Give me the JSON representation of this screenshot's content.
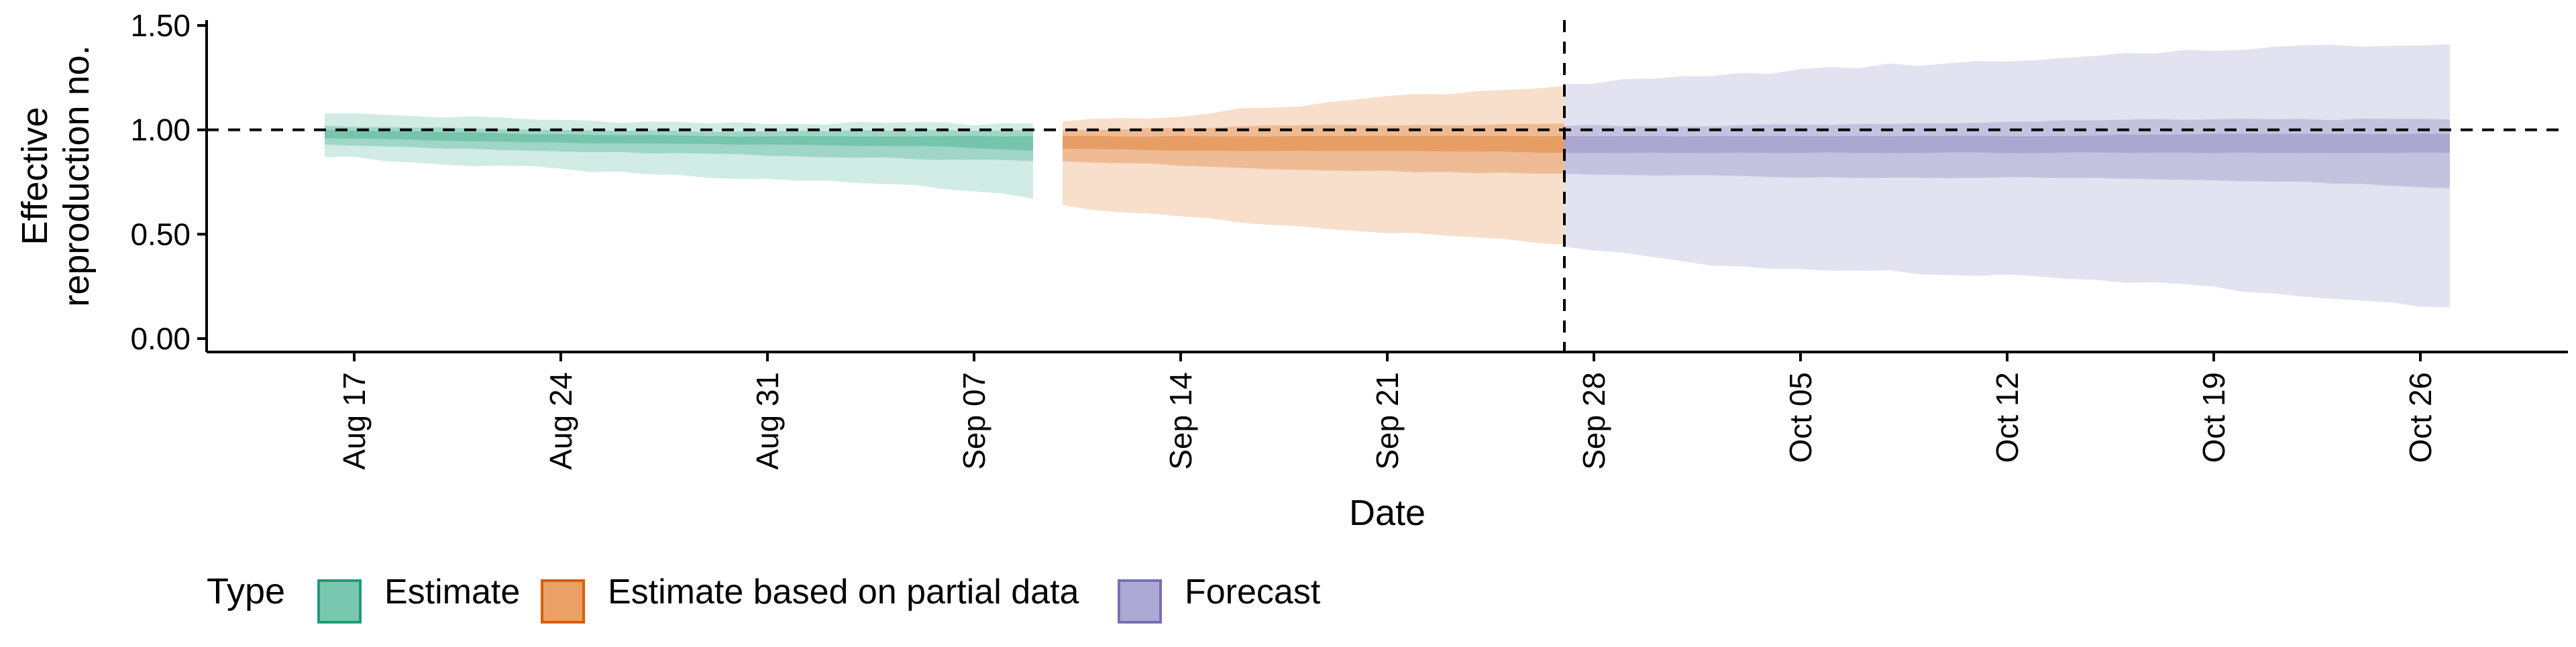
{
  "chart_data": {
    "type": "area",
    "title": "",
    "xlabel": "Date",
    "ylabel_lines": [
      "Effective",
      "reproduction no."
    ],
    "ylim": [
      0,
      1.5
    ],
    "yticks": [
      0.0,
      0.5,
      1.0,
      1.5
    ],
    "ytick_labels": [
      "0.00",
      "0.50",
      "1.00",
      "1.50"
    ],
    "xlim": [
      "2020-08-12",
      "2020-10-31"
    ],
    "xticks": [
      "2020-08-17",
      "2020-08-24",
      "2020-08-31",
      "2020-09-07",
      "2020-09-14",
      "2020-09-21",
      "2020-09-28",
      "2020-10-05",
      "2020-10-12",
      "2020-10-19",
      "2020-10-26"
    ],
    "xtick_labels": [
      "Aug 17",
      "Aug 24",
      "Aug 31",
      "Sep 07",
      "Sep 14",
      "Sep 21",
      "Sep 28",
      "Oct 05",
      "Oct 12",
      "Oct 19",
      "Oct 26"
    ],
    "reference_line_y": 1.0,
    "forecast_date": "2020-09-27",
    "grid": false,
    "legend": {
      "title": "Type",
      "placement": "bottom",
      "entries": [
        "Estimate",
        "Estimate based on partial data",
        "Forecast"
      ]
    },
    "series": [
      {
        "name": "Estimate",
        "color": "#1b9e77",
        "anchors": [
          {
            "x": "2020-08-16",
            "lower90": 0.87,
            "upper90": 1.08,
            "lower50": 0.93,
            "upper50": 1.02,
            "lower20": 0.96,
            "upper20": 1.0
          },
          {
            "x": "2020-08-23",
            "lower90": 0.82,
            "upper90": 1.05,
            "lower50": 0.9,
            "upper50": 1.0,
            "lower20": 0.94,
            "upper20": 0.98
          },
          {
            "x": "2020-08-30",
            "lower90": 0.77,
            "upper90": 1.03,
            "lower50": 0.88,
            "upper50": 0.99,
            "lower20": 0.93,
            "upper20": 0.97
          },
          {
            "x": "2020-09-06",
            "lower90": 0.72,
            "upper90": 1.03,
            "lower50": 0.86,
            "upper50": 1.0,
            "lower20": 0.92,
            "upper20": 0.97
          },
          {
            "x": "2020-09-09",
            "lower90": 0.67,
            "upper90": 1.03,
            "lower50": 0.85,
            "upper50": 1.0,
            "lower20": 0.9,
            "upper20": 0.97
          }
        ]
      },
      {
        "name": "Estimate based on partial data",
        "color": "#d95f02",
        "anchors": [
          {
            "x": "2020-09-10",
            "lower90": 0.64,
            "upper90": 1.04,
            "lower50": 0.85,
            "upper50": 1.0,
            "lower20": 0.91,
            "upper20": 0.97
          },
          {
            "x": "2020-09-14",
            "lower90": 0.58,
            "upper90": 1.07,
            "lower50": 0.83,
            "upper50": 1.01,
            "lower20": 0.9,
            "upper20": 0.97
          },
          {
            "x": "2020-09-18",
            "lower90": 0.53,
            "upper90": 1.12,
            "lower50": 0.81,
            "upper50": 1.02,
            "lower20": 0.9,
            "upper20": 0.97
          },
          {
            "x": "2020-09-22",
            "lower90": 0.5,
            "upper90": 1.17,
            "lower50": 0.8,
            "upper50": 1.02,
            "lower20": 0.9,
            "upper20": 0.97
          },
          {
            "x": "2020-09-27",
            "lower90": 0.45,
            "upper90": 1.21,
            "lower50": 0.79,
            "upper50": 1.03,
            "lower20": 0.89,
            "upper20": 0.97
          }
        ]
      },
      {
        "name": "Forecast",
        "color": "#7570b3",
        "anchors": [
          {
            "x": "2020-09-27",
            "lower90": 0.44,
            "upper90": 1.22,
            "lower50": 0.79,
            "upper50": 1.02,
            "lower20": 0.89,
            "upper20": 0.97
          },
          {
            "x": "2020-10-02",
            "lower90": 0.35,
            "upper90": 1.26,
            "lower50": 0.78,
            "upper50": 1.02,
            "lower20": 0.89,
            "upper20": 0.97
          },
          {
            "x": "2020-10-08",
            "lower90": 0.32,
            "upper90": 1.31,
            "lower50": 0.77,
            "upper50": 1.03,
            "lower20": 0.89,
            "upper20": 0.97
          },
          {
            "x": "2020-10-13",
            "lower90": 0.3,
            "upper90": 1.33,
            "lower50": 0.77,
            "upper50": 1.04,
            "lower20": 0.89,
            "upper20": 0.97
          },
          {
            "x": "2020-10-18",
            "lower90": 0.26,
            "upper90": 1.38,
            "lower50": 0.76,
            "upper50": 1.05,
            "lower20": 0.89,
            "upper20": 0.98
          },
          {
            "x": "2020-10-22",
            "lower90": 0.2,
            "upper90": 1.4,
            "lower50": 0.75,
            "upper50": 1.05,
            "lower20": 0.89,
            "upper20": 0.98
          },
          {
            "x": "2020-10-27",
            "lower90": 0.15,
            "upper90": 1.41,
            "lower50": 0.72,
            "upper50": 1.05,
            "lower20": 0.89,
            "upper20": 0.98
          }
        ]
      }
    ]
  }
}
